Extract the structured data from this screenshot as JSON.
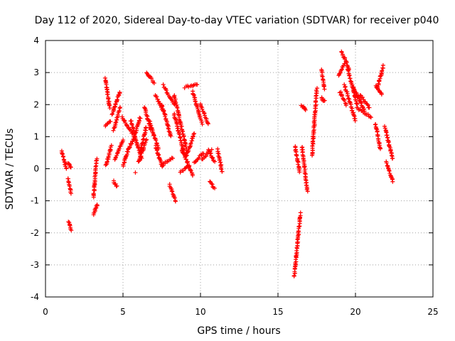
{
  "chart_data": {
    "type": "scatter",
    "title": "Day 112 of 2020, Sidereal Day-to-day VTEC variation (SDTVAR) for receiver p040",
    "xlabel": "GPS time / hours",
    "ylabel": "SDTVAR / TECUs",
    "xlim": [
      0,
      25
    ],
    "ylim": [
      -4,
      4
    ],
    "xticks": [
      0,
      5,
      10,
      15,
      20,
      25
    ],
    "yticks": [
      -4,
      -3,
      -2,
      -1,
      0,
      1,
      2,
      3,
      4
    ],
    "grid": true,
    "marker": "plus",
    "colors": {
      "series": "#ff0000",
      "grid": "#a0a0a0",
      "axis": "#000000"
    },
    "segments": [
      {
        "x": [
          1.05,
          1.35
        ],
        "y": [
          0.55,
          0.0
        ]
      },
      {
        "x": [
          1.45,
          1.65
        ],
        "y": [
          -0.3,
          -0.75
        ]
      },
      {
        "x": [
          1.5,
          1.65
        ],
        "y": [
          -1.65,
          -1.9
        ]
      },
      {
        "x": [
          1.45,
          1.65
        ],
        "y": [
          0.15,
          0.05
        ]
      },
      {
        "x": [
          3.1,
          3.35
        ],
        "y": [
          -1.45,
          -1.1
        ]
      },
      {
        "x": [
          3.1,
          3.3
        ],
        "y": [
          -0.9,
          0.3
        ]
      },
      {
        "x": [
          3.85,
          4.15
        ],
        "y": [
          2.8,
          1.9
        ]
      },
      {
        "x": [
          3.85,
          4.2
        ],
        "y": [
          1.35,
          1.5
        ]
      },
      {
        "x": [
          3.9,
          4.25
        ],
        "y": [
          0.1,
          0.7
        ]
      },
      {
        "x": [
          4.3,
          4.8
        ],
        "y": [
          1.7,
          2.4
        ]
      },
      {
        "x": [
          4.4,
          4.8
        ],
        "y": [
          1.2,
          1.9
        ]
      },
      {
        "x": [
          4.4,
          4.6
        ],
        "y": [
          -0.4,
          -0.55
        ]
      },
      {
        "x": [
          4.5,
          5.0
        ],
        "y": [
          0.3,
          0.9
        ]
      },
      {
        "x": [
          4.95,
          5.6
        ],
        "y": [
          1.6,
          1.1
        ]
      },
      {
        "x": [
          5.0,
          5.5
        ],
        "y": [
          0.1,
          0.8
        ]
      },
      {
        "x": [
          5.6,
          6.1
        ],
        "y": [
          0.8,
          1.6
        ]
      },
      {
        "x": [
          5.5,
          6.2
        ],
        "y": [
          1.5,
          0.3
        ]
      },
      {
        "x": [
          6.1,
          6.5
        ],
        "y": [
          0.5,
          1.3
        ]
      },
      {
        "x": [
          6.0,
          6.5
        ],
        "y": [
          0.2,
          0.9
        ]
      },
      {
        "x": [
          6.4,
          6.8
        ],
        "y": [
          1.9,
          1.2
        ]
      },
      {
        "x": [
          6.5,
          7.0
        ],
        "y": [
          3.0,
          2.7
        ]
      },
      {
        "x": [
          6.7,
          7.3
        ],
        "y": [
          1.5,
          0.6
        ]
      },
      {
        "x": [
          7.1,
          7.6
        ],
        "y": [
          2.3,
          1.8
        ]
      },
      {
        "x": [
          7.1,
          7.5
        ],
        "y": [
          0.7,
          0.1
        ]
      },
      {
        "x": [
          7.6,
          8.3
        ],
        "y": [
          2.6,
          2.0
        ]
      },
      {
        "x": [
          7.5,
          8.1
        ],
        "y": [
          2.0,
          1.0
        ]
      },
      {
        "x": [
          7.5,
          8.2
        ],
        "y": [
          0.1,
          0.35
        ]
      },
      {
        "x": [
          8.0,
          8.4
        ],
        "y": [
          -0.5,
          -1.0
        ]
      },
      {
        "x": [
          8.3,
          9.1
        ],
        "y": [
          2.3,
          0.6
        ]
      },
      {
        "x": [
          8.3,
          9.0
        ],
        "y": [
          1.7,
          0.4
        ]
      },
      {
        "x": [
          8.8,
          9.5
        ],
        "y": [
          0.6,
          -0.2
        ]
      },
      {
        "x": [
          8.7,
          9.3
        ],
        "y": [
          -0.1,
          0.1
        ]
      },
      {
        "x": [
          9.0,
          9.8
        ],
        "y": [
          2.55,
          2.65
        ]
      },
      {
        "x": [
          9.1,
          9.6
        ],
        "y": [
          0.4,
          1.1
        ]
      },
      {
        "x": [
          9.5,
          10.1
        ],
        "y": [
          2.4,
          1.4
        ]
      },
      {
        "x": [
          9.6,
          10.2
        ],
        "y": [
          0.2,
          0.5
        ]
      },
      {
        "x": [
          10.0,
          10.5
        ],
        "y": [
          2.0,
          1.4
        ]
      },
      {
        "x": [
          10.1,
          10.7
        ],
        "y": [
          0.3,
          0.6
        ]
      },
      {
        "x": [
          10.5,
          10.9
        ],
        "y": [
          0.6,
          0.2
        ]
      },
      {
        "x": [
          10.6,
          10.9
        ],
        "y": [
          -0.4,
          -0.6
        ]
      },
      {
        "x": [
          11.1,
          11.4
        ],
        "y": [
          0.6,
          -0.1
        ]
      },
      {
        "x": [
          16.05,
          16.45
        ],
        "y": [
          -3.35,
          -1.4
        ]
      },
      {
        "x": [
          16.1,
          16.4
        ],
        "y": [
          0.7,
          -0.1
        ]
      },
      {
        "x": [
          16.5,
          16.8
        ],
        "y": [
          1.95,
          1.85
        ]
      },
      {
        "x": [
          16.55,
          16.9
        ],
        "y": [
          0.7,
          -0.7
        ]
      },
      {
        "x": [
          17.2,
          17.5
        ],
        "y": [
          0.4,
          2.5
        ]
      },
      {
        "x": [
          17.8,
          18.0
        ],
        "y": [
          3.1,
          2.5
        ]
      },
      {
        "x": [
          17.8,
          18.0
        ],
        "y": [
          2.2,
          2.1
        ]
      },
      {
        "x": [
          18.9,
          19.3
        ],
        "y": [
          2.9,
          3.3
        ]
      },
      {
        "x": [
          19.1,
          19.6
        ],
        "y": [
          3.65,
          3.1
        ]
      },
      {
        "x": [
          19.0,
          19.4
        ],
        "y": [
          2.4,
          2.0
        ]
      },
      {
        "x": [
          19.3,
          20.0
        ],
        "y": [
          2.6,
          1.5
        ]
      },
      {
        "x": [
          19.5,
          20.1
        ],
        "y": [
          3.1,
          2.0
        ]
      },
      {
        "x": [
          19.8,
          20.6
        ],
        "y": [
          2.6,
          1.8
        ]
      },
      {
        "x": [
          20.1,
          21.0
        ],
        "y": [
          1.9,
          1.6
        ]
      },
      {
        "x": [
          20.3,
          20.9
        ],
        "y": [
          2.3,
          1.9
        ]
      },
      {
        "x": [
          21.3,
          21.6
        ],
        "y": [
          1.4,
          0.6
        ]
      },
      {
        "x": [
          21.4,
          21.8
        ],
        "y": [
          2.5,
          3.2
        ]
      },
      {
        "x": [
          21.3,
          21.7
        ],
        "y": [
          2.6,
          2.3
        ]
      },
      {
        "x": [
          21.9,
          22.4
        ],
        "y": [
          1.3,
          0.3
        ]
      },
      {
        "x": [
          22.0,
          22.4
        ],
        "y": [
          0.2,
          -0.4
        ]
      }
    ],
    "outliers": {
      "x": [
        5.8,
        3.2
      ],
      "y": [
        -0.12,
        -1.3
      ]
    }
  }
}
